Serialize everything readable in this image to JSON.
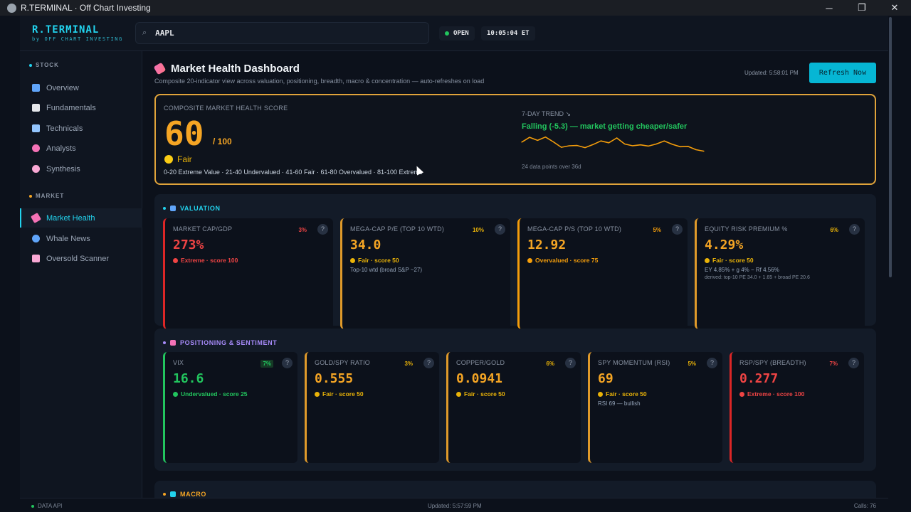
{
  "window": {
    "title": "R.TERMINAL · Off Chart Investing",
    "controls": {
      "minimize": "─",
      "maximize": "❐",
      "close": "✕"
    }
  },
  "header": {
    "logo": "R.TERMINAL",
    "tagline": "by OFF CHART INVESTING",
    "search_value": "AAPL",
    "market_status": "OPEN",
    "clock": "10:05:04 ET"
  },
  "sidebar": {
    "stock_section": "STOCK",
    "stock_items": [
      {
        "label": "Overview",
        "icon": "bar-chart-icon",
        "color": "#60a5fa"
      },
      {
        "label": "Fundamentals",
        "icon": "document-icon",
        "color": "#e5e7eb"
      },
      {
        "label": "Technicals",
        "icon": "trend-chart-icon",
        "color": "#93c5fd"
      },
      {
        "label": "Analysts",
        "icon": "target-icon",
        "color": "#f472b6"
      },
      {
        "label": "Synthesis",
        "icon": "brain-icon",
        "color": "#f9a8d4"
      }
    ],
    "market_section": "MARKET",
    "market_items": [
      {
        "label": "Market Health",
        "icon": "thermometer-icon",
        "color": "#f472b6",
        "active": true
      },
      {
        "label": "Whale News",
        "icon": "whale-icon",
        "color": "#60a5fa",
        "active": false
      },
      {
        "label": "Oversold Scanner",
        "icon": "down-chart-icon",
        "color": "#f9a8d4",
        "active": false
      }
    ]
  },
  "page": {
    "title": "Market Health Dashboard",
    "subtitle": "Composite 20-indicator view across valuation, positioning, breadth, macro & concentration — auto-refreshes on load",
    "updated": "Updated: 5:58:01 PM",
    "refresh_label": "Refresh Now"
  },
  "composite": {
    "label": "COMPOSITE MARKET HEALTH SCORE",
    "score": "60",
    "denominator": "/ 100",
    "rating": "Fair",
    "scale": "0-20 Extreme Value · 21-40 Undervalued · 41-60 Fair · 61-80 Overvalued · 81-100 Extreme",
    "trend_label": "7-DAY TREND ↘",
    "trend_text": "Falling (-5.3) — market getting cheaper/safer",
    "trend_note": "24 data points over 36d",
    "trend_color": "#f59e0b"
  },
  "chart_data": {
    "type": "line",
    "title": "7-DAY TREND",
    "x": [
      1,
      2,
      3,
      4,
      5,
      6,
      7,
      8,
      9,
      10,
      11,
      12,
      13,
      14,
      15,
      16,
      17,
      18,
      19,
      20,
      21,
      22,
      23,
      24
    ],
    "series": [
      {
        "values": [
          65.2,
          66.8,
          65.8,
          66.9,
          65.3,
          63.5,
          64.0,
          64.1,
          63.4,
          64.4,
          65.6,
          65.0,
          66.6,
          64.6,
          64.0,
          64.3,
          63.9,
          64.6,
          65.6,
          64.5,
          63.7,
          63.8,
          62.7,
          62.2
        ]
      }
    ],
    "ylim": [
      60,
      68
    ],
    "grid": false
  },
  "sections": [
    {
      "title": "VALUATION",
      "color": "#22d3ee",
      "icon_color": "#60a5fa",
      "icon": "bar-chart-icon",
      "cards": [
        {
          "label": "MARKET CAP/GDP",
          "weight": "3%",
          "weight_color": "#ef4444",
          "weight_bg": "transparent",
          "value": "273%",
          "value_color": "#ef4444",
          "status": "Extreme · score 100",
          "status_color": "#ef4444",
          "border": "#dc2626",
          "note": "",
          "note2": ""
        },
        {
          "label": "MEGA-CAP P/E (TOP 10 WTD)",
          "weight": "10%",
          "weight_color": "#eab308",
          "weight_bg": "transparent",
          "value": "34.0",
          "value_color": "#f5a524",
          "status": "Fair · score 50",
          "status_color": "#eab308",
          "border": "#e09a2a",
          "note": "Top-10 wtd (broad S&P ~27)",
          "note2": ""
        },
        {
          "label": "MEGA-CAP P/S (TOP 10 WTD)",
          "weight": "5%",
          "weight_color": "#f59e0b",
          "weight_bg": "transparent",
          "value": "12.92",
          "value_color": "#f5a524",
          "status": "Overvalued · score 75",
          "status_color": "#f59e0b",
          "border": "#f59e0b",
          "note": "",
          "note2": ""
        },
        {
          "label": "EQUITY RISK PREMIUM %",
          "weight": "6%",
          "weight_color": "#eab308",
          "weight_bg": "transparent",
          "value": "4.29%",
          "value_color": "#f5a524",
          "status": "Fair · score 50",
          "status_color": "#eab308",
          "border": "#e09a2a",
          "note": "EY 4.85% + g 4% − Rf 4.56%",
          "note2": "derived: top-10 PE 34.0 + 1.65 + broad PE 20.6"
        }
      ]
    },
    {
      "title": "POSITIONING & SENTIMENT",
      "color": "#a78bfa",
      "icon_color": "#f472b6",
      "icon": "target-icon",
      "cards": [
        {
          "label": "VIX",
          "weight": "7%",
          "weight_color": "#22c55e",
          "weight_bg": "#163a26",
          "value": "16.6",
          "value_color": "#22c55e",
          "status": "Undervalued · score 25",
          "status_color": "#22c55e",
          "border": "#22c55e",
          "note": "",
          "note2": ""
        },
        {
          "label": "GOLD/SPY RATIO",
          "weight": "3%",
          "weight_color": "#eab308",
          "weight_bg": "transparent",
          "value": "0.555",
          "value_color": "#f5a524",
          "status": "Fair · score 50",
          "status_color": "#eab308",
          "border": "#e09a2a",
          "note": "",
          "note2": ""
        },
        {
          "label": "COPPER/GOLD",
          "weight": "6%",
          "weight_color": "#eab308",
          "weight_bg": "transparent",
          "value": "0.0941",
          "value_color": "#f5a524",
          "status": "Fair · score 50",
          "status_color": "#eab308",
          "border": "#e09a2a",
          "note": "",
          "note2": ""
        },
        {
          "label": "SPY MOMENTUM (RSI)",
          "weight": "5%",
          "weight_color": "#eab308",
          "weight_bg": "transparent",
          "value": "69",
          "value_color": "#f5a524",
          "status": "Fair · score 50",
          "status_color": "#eab308",
          "border": "#e09a2a",
          "note": "RSI 69 — bullish",
          "note2": ""
        },
        {
          "label": "RSP/SPY (BREADTH)",
          "weight": "7%",
          "weight_color": "#ef4444",
          "weight_bg": "transparent",
          "value": "0.277",
          "value_color": "#ef4444",
          "status": "Extreme · score 100",
          "status_color": "#ef4444",
          "border": "#dc2626",
          "note": "",
          "note2": ""
        }
      ]
    },
    {
      "title": "MACRO",
      "color": "#f5a524",
      "icon_color": "#22d3ee",
      "icon": "globe-icon",
      "cards": []
    }
  ],
  "footer": {
    "api": "DATA API",
    "updated": "Updated: 5:57:59 PM",
    "calls": "Calls: 76"
  }
}
